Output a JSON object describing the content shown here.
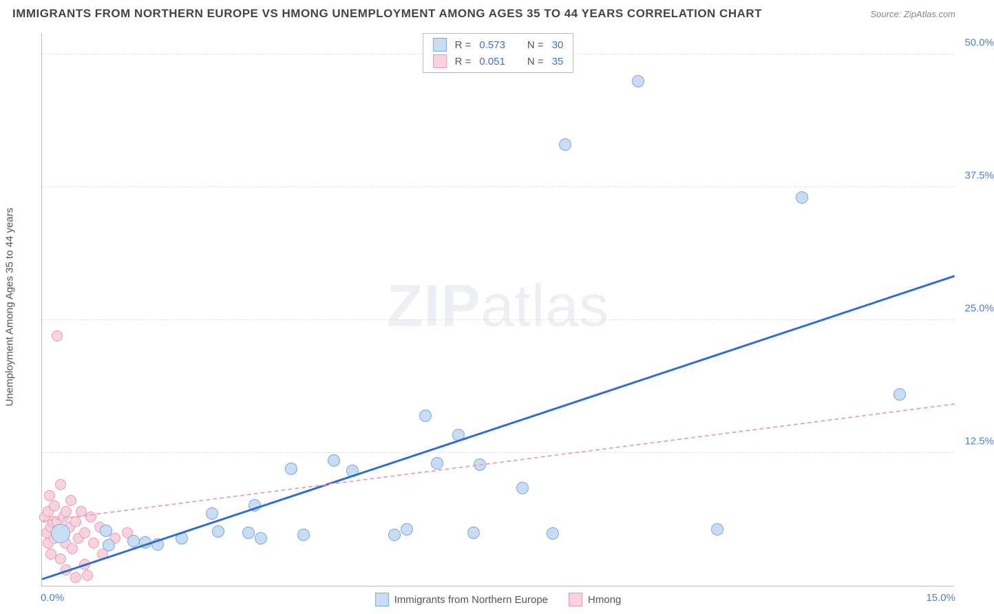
{
  "header": {
    "title": "IMMIGRANTS FROM NORTHERN EUROPE VS HMONG UNEMPLOYMENT AMONG AGES 35 TO 44 YEARS CORRELATION CHART",
    "source": "Source: ZipAtlas.com"
  },
  "watermark": {
    "part1": "ZIP",
    "part2": "atlas"
  },
  "chart": {
    "type": "scatter",
    "ylabel": "Unemployment Among Ages 35 to 44 years",
    "xlim": [
      0,
      15
    ],
    "ylim": [
      0,
      52
    ],
    "x_ticks": [
      {
        "value": 0,
        "label": "0.0%",
        "pos": "left"
      },
      {
        "value": 15,
        "label": "15.0%",
        "pos": "right"
      }
    ],
    "y_ticks": [
      {
        "value": 12.5,
        "label": "12.5%"
      },
      {
        "value": 25.0,
        "label": "25.0%"
      },
      {
        "value": 37.5,
        "label": "37.5%"
      },
      {
        "value": 50.0,
        "label": "50.0%"
      }
    ],
    "grid_color": "#e0e0e0",
    "axis_color": "#bbbbbb",
    "background_color": "#ffffff",
    "series": [
      {
        "key": "a",
        "label": "Immigrants from Northern Europe",
        "color_fill": "#c8dcf4",
        "color_stroke": "#7aa8e0",
        "trend_color": "#2f6dd0",
        "trend_style": "solid",
        "r_label": "R =",
        "r_value": "0.573",
        "n_label": "N =",
        "n_value": "30",
        "trend": {
          "x1": 0,
          "y1": 0.5,
          "x2": 15,
          "y2": 29.0
        },
        "marker_radius": 9,
        "points": [
          {
            "x": 0.3,
            "y": 4.9,
            "r": 14
          },
          {
            "x": 1.1,
            "y": 3.8
          },
          {
            "x": 1.05,
            "y": 5.2
          },
          {
            "x": 1.5,
            "y": 4.2
          },
          {
            "x": 1.7,
            "y": 4.1
          },
          {
            "x": 1.9,
            "y": 3.9
          },
          {
            "x": 2.3,
            "y": 4.5
          },
          {
            "x": 2.8,
            "y": 6.8
          },
          {
            "x": 2.9,
            "y": 5.1
          },
          {
            "x": 3.4,
            "y": 5.0
          },
          {
            "x": 3.5,
            "y": 7.6
          },
          {
            "x": 3.6,
            "y": 4.5
          },
          {
            "x": 4.1,
            "y": 11.0
          },
          {
            "x": 4.3,
            "y": 4.8
          },
          {
            "x": 4.8,
            "y": 11.8
          },
          {
            "x": 5.1,
            "y": 10.8
          },
          {
            "x": 5.8,
            "y": 4.8
          },
          {
            "x": 6.0,
            "y": 5.3
          },
          {
            "x": 6.3,
            "y": 16.0
          },
          {
            "x": 6.5,
            "y": 11.5
          },
          {
            "x": 6.85,
            "y": 14.2
          },
          {
            "x": 7.1,
            "y": 5.0
          },
          {
            "x": 7.2,
            "y": 11.4
          },
          {
            "x": 7.9,
            "y": 9.2
          },
          {
            "x": 8.4,
            "y": 4.9
          },
          {
            "x": 8.6,
            "y": 41.5
          },
          {
            "x": 9.8,
            "y": 47.5
          },
          {
            "x": 11.1,
            "y": 5.3
          },
          {
            "x": 12.5,
            "y": 36.5
          },
          {
            "x": 14.1,
            "y": 18.0
          }
        ]
      },
      {
        "key": "b",
        "label": "Hmong",
        "color_fill": "#f8d2dc",
        "color_stroke": "#e89ab0",
        "trend_color": "#e8a8b8",
        "trend_style": "dashed",
        "r_label": "R =",
        "r_value": "0.051",
        "n_label": "N =",
        "n_value": "35",
        "trend": {
          "x1": 0,
          "y1": 6.0,
          "x2": 15,
          "y2": 17.0
        },
        "marker_radius": 8,
        "points": [
          {
            "x": 0.05,
            "y": 6.5
          },
          {
            "x": 0.08,
            "y": 5.0
          },
          {
            "x": 0.1,
            "y": 7.0
          },
          {
            "x": 0.1,
            "y": 4.0
          },
          {
            "x": 0.12,
            "y": 8.5
          },
          {
            "x": 0.15,
            "y": 5.5
          },
          {
            "x": 0.15,
            "y": 3.0
          },
          {
            "x": 0.18,
            "y": 6.0
          },
          {
            "x": 0.2,
            "y": 7.5
          },
          {
            "x": 0.2,
            "y": 4.5
          },
          {
            "x": 0.25,
            "y": 23.5
          },
          {
            "x": 0.25,
            "y": 6.0
          },
          {
            "x": 0.28,
            "y": 5.0
          },
          {
            "x": 0.3,
            "y": 9.5
          },
          {
            "x": 0.3,
            "y": 2.5
          },
          {
            "x": 0.35,
            "y": 6.5
          },
          {
            "x": 0.38,
            "y": 4.0
          },
          {
            "x": 0.4,
            "y": 7.0
          },
          {
            "x": 0.4,
            "y": 1.5
          },
          {
            "x": 0.45,
            "y": 5.5
          },
          {
            "x": 0.48,
            "y": 8.0
          },
          {
            "x": 0.5,
            "y": 3.5
          },
          {
            "x": 0.55,
            "y": 6.0
          },
          {
            "x": 0.55,
            "y": 0.8
          },
          {
            "x": 0.6,
            "y": 4.5
          },
          {
            "x": 0.65,
            "y": 7.0
          },
          {
            "x": 0.7,
            "y": 5.0
          },
          {
            "x": 0.7,
            "y": 2.0
          },
          {
            "x": 0.75,
            "y": 1.0
          },
          {
            "x": 0.8,
            "y": 6.5
          },
          {
            "x": 0.85,
            "y": 4.0
          },
          {
            "x": 0.95,
            "y": 5.5
          },
          {
            "x": 1.0,
            "y": 3.0
          },
          {
            "x": 1.2,
            "y": 4.5
          },
          {
            "x": 1.4,
            "y": 5.0
          }
        ]
      }
    ]
  }
}
